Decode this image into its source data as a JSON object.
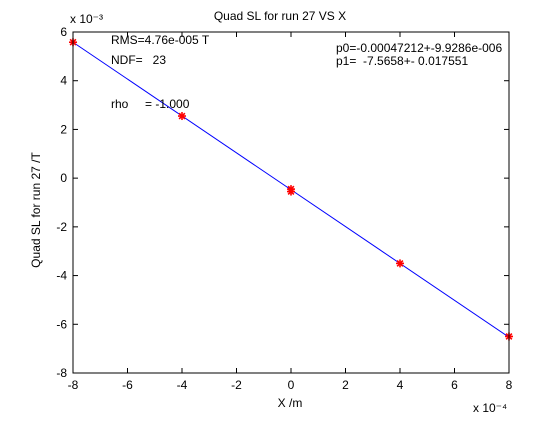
{
  "chart_data": {
    "type": "scatter",
    "title": "Quad SL for run 27 VS X",
    "xlabel": "X /m",
    "ylabel": "Quad SL for run 27 /T",
    "x_exponent_label": "x 10⁻⁴",
    "y_exponent_label": "x 10⁻³",
    "xlim": [
      -8,
      8
    ],
    "ylim": [
      -8,
      6
    ],
    "xticks": [
      -8,
      -6,
      -4,
      -2,
      0,
      2,
      4,
      6,
      8
    ],
    "yticks": [
      -8,
      -6,
      -4,
      -2,
      0,
      2,
      4,
      6
    ],
    "grid": false,
    "points": {
      "x": [
        -8,
        -4,
        0,
        0,
        4,
        8
      ],
      "y": [
        5.58,
        2.55,
        -0.45,
        -0.55,
        -3.5,
        -6.5
      ],
      "color": "#ff0000",
      "marker": "asterisk"
    },
    "fit_line": {
      "x": [
        -8,
        8
      ],
      "y": [
        5.58,
        -6.53
      ],
      "color": "#0000ff"
    },
    "annotations": {
      "rms": "RMS=4.76e-005 T",
      "ndf": "NDF=   23",
      "rho": "rho     = -1.000",
      "p0": "p0=-0.00047212+-9.9286e-006",
      "p1": "p1=  -7.5658+- 0.017551"
    }
  }
}
